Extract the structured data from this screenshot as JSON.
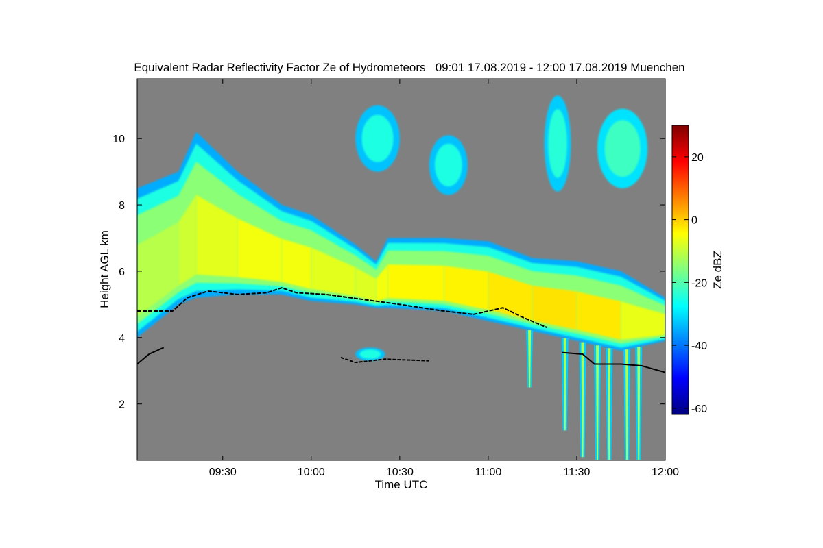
{
  "chart_data": {
    "type": "heatmap",
    "title": "Equivalent Radar Reflectivity Factor Ze of Hydrometeors   09:01 17.08.2019 - 12:00 17.08.2019 Muenchen",
    "xlabel": "Time UTC",
    "ylabel": "Height AGL km",
    "xlim": [
      "09:01",
      "12:00"
    ],
    "ylim": [
      0.3,
      11.8
    ],
    "x_ticks": [
      "09:30",
      "10:00",
      "10:30",
      "11:00",
      "11:30",
      "12:00"
    ],
    "y_ticks": [
      2,
      4,
      6,
      8,
      10
    ],
    "no_data_color": "#808080",
    "colorbar": {
      "label": "Ze dBZ",
      "range": [
        -62,
        30
      ],
      "ticks": [
        20,
        0,
        -20,
        -40,
        -60
      ],
      "colormap": "jet",
      "colors": [
        "#00007f",
        "#0000ff",
        "#0080ff",
        "#00ffff",
        "#80ff80",
        "#ffff00",
        "#ff8000",
        "#ff0000",
        "#7f0000"
      ]
    },
    "echo_layers": [
      {
        "name": "main stratiform layer",
        "points": [
          {
            "t": "09:01",
            "top": 8.5,
            "base": 4.0,
            "ze": -12
          },
          {
            "t": "09:15",
            "top": 9.0,
            "base": 5.0,
            "ze": -10
          },
          {
            "t": "09:21",
            "top": 10.2,
            "base": 5.2,
            "ze": -8
          },
          {
            "t": "09:35",
            "top": 9.0,
            "base": 5.3,
            "ze": -6
          },
          {
            "t": "09:50",
            "top": 8.0,
            "base": 5.3,
            "ze": -5
          },
          {
            "t": "10:00",
            "top": 7.7,
            "base": 5.1,
            "ze": -6
          },
          {
            "t": "10:15",
            "top": 6.8,
            "base": 5.0,
            "ze": -8
          },
          {
            "t": "10:22",
            "top": 6.3,
            "base": 4.9,
            "ze": -7
          },
          {
            "t": "10:26",
            "top": 7.0,
            "base": 4.9,
            "ze": -4
          },
          {
            "t": "10:45",
            "top": 7.0,
            "base": 4.8,
            "ze": -4
          },
          {
            "t": "11:00",
            "top": 6.9,
            "base": 4.5,
            "ze": -3
          },
          {
            "t": "11:15",
            "top": 6.4,
            "base": 4.2,
            "ze": -2
          },
          {
            "t": "11:30",
            "top": 6.3,
            "base": 3.9,
            "ze": -2
          },
          {
            "t": "11:45",
            "top": 6.0,
            "base": 3.6,
            "ze": -3
          },
          {
            "t": "12:00",
            "top": 5.2,
            "base": 3.9,
            "ze": -10
          }
        ]
      },
      {
        "name": "upper cirrus 10:15",
        "t_start": "10:15",
        "t_end": "10:30",
        "top": 11.0,
        "base": 9.0,
        "ze": -25
      },
      {
        "name": "upper cirrus 10:40",
        "t_start": "10:40",
        "t_end": "10:53",
        "top": 10.1,
        "base": 8.3,
        "ze": -25
      },
      {
        "name": "upper cirrus 11:22",
        "t_start": "11:19",
        "t_end": "11:28",
        "top": 11.3,
        "base": 8.4,
        "ze": -24
      },
      {
        "name": "upper cirrus 11:40",
        "t_start": "11:37",
        "t_end": "11:54",
        "top": 10.9,
        "base": 8.5,
        "ze": -22
      },
      {
        "name": "mid-level patch",
        "t_start": "10:15",
        "t_end": "10:25",
        "top": 3.7,
        "base": 3.3,
        "ze": -25
      }
    ],
    "fall_streaks": [
      {
        "t": "11:14",
        "base": 2.5
      },
      {
        "t": "11:26",
        "base": 1.2
      },
      {
        "t": "11:32",
        "base": 0.4
      },
      {
        "t": "11:37",
        "base": 0.3
      },
      {
        "t": "11:41",
        "base": 0.3
      },
      {
        "t": "11:47",
        "base": 0.3
      },
      {
        "t": "11:51",
        "base": 0.3
      }
    ],
    "melting_layer_line": [
      {
        "t": "09:01",
        "h": 4.8
      },
      {
        "t": "09:13",
        "h": 4.8
      },
      {
        "t": "09:18",
        "h": 5.2
      },
      {
        "t": "09:25",
        "h": 5.4
      },
      {
        "t": "09:35",
        "h": 5.3
      },
      {
        "t": "09:45",
        "h": 5.35
      },
      {
        "t": "09:50",
        "h": 5.5
      },
      {
        "t": "09:55",
        "h": 5.35
      },
      {
        "t": "10:05",
        "h": 5.3
      },
      {
        "t": "10:30",
        "h": 5.0
      },
      {
        "t": "10:45",
        "h": 4.8
      },
      {
        "t": "10:55",
        "h": 4.7
      },
      {
        "t": "11:05",
        "h": 4.9
      },
      {
        "t": "11:12",
        "h": 4.6
      },
      {
        "t": "11:20",
        "h": 4.3
      }
    ],
    "cloud_base_line": [
      {
        "t": "09:01",
        "h": 3.2
      },
      {
        "t": "09:05",
        "h": 3.5
      },
      {
        "t": "09:10",
        "h": 3.7
      },
      {
        "t": "10:10",
        "h": 3.4
      },
      {
        "t": "10:15",
        "h": 3.25
      },
      {
        "t": "10:25",
        "h": 3.35
      },
      {
        "t": "10:40",
        "h": 3.3
      },
      {
        "t": "11:25",
        "h": 3.55
      },
      {
        "t": "11:32",
        "h": 3.5
      },
      {
        "t": "11:36",
        "h": 3.2
      },
      {
        "t": "11:45",
        "h": 3.2
      },
      {
        "t": "11:52",
        "h": 3.15
      },
      {
        "t": "12:00",
        "h": 2.95
      }
    ]
  }
}
